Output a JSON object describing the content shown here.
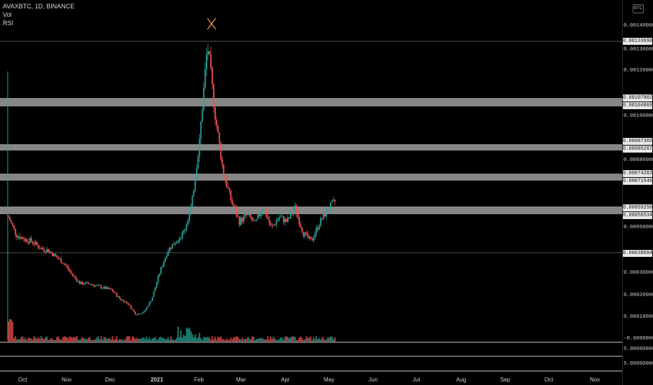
{
  "header": {
    "symbol_line": "AVAXBTC, 1D, BINANCE",
    "indicator_1": "Vol",
    "indicator_2": "RSI",
    "currency_badge": "BTC"
  },
  "colors": {
    "up": "#26a69a",
    "down": "#ef5350",
    "zone": "#9e9e9e",
    "marker": "#f5a05a"
  },
  "price_axis": {
    "ticks": [
      "0.00140000",
      "0.00130000",
      "0.00120000",
      "0.00100000",
      "0.00080000",
      "0.00050000",
      "0.00030000",
      "0.00020000",
      "0.00010000",
      "-0.00000000"
    ],
    "tags": [
      "0.00133690",
      "0.00107902",
      "0.00104869",
      "0.00087365",
      "0.00085287",
      "0.00074282",
      "0.00071546",
      "0.00059250",
      "0.00056534",
      "0.00038694"
    ],
    "panel_ticks": [
      "5.00000000",
      "5.00000000"
    ]
  },
  "time_axis": {
    "months": [
      "Oct",
      "Nov",
      "Dec",
      "2021",
      "Feb",
      "Mar",
      "Apr",
      "May",
      "Jun",
      "Jul",
      "Aug",
      "Sep",
      "Oct",
      "Nov"
    ]
  },
  "chart_data": {
    "type": "candlestick",
    "symbol": "AVAXBTC",
    "interval": "1D",
    "exchange": "BINANCE",
    "ylim": [
      0,
      0.0015
    ],
    "key_levels": [
      {
        "high": 0.00107902,
        "low": 0.00104869
      },
      {
        "high": 0.00087365,
        "low": 0.00085287
      },
      {
        "high": 0.00074282,
        "low": 0.00071546
      },
      {
        "high": 0.0005925,
        "low": 0.00056534
      }
    ],
    "horizontal_lines": [
      0.0013369,
      0.00038694
    ],
    "peak_price": 0.0013369,
    "price_path": [
      [
        0.00055,
        0.00047
      ],
      [
        0.00045,
        0.00044
      ],
      [
        0.00041,
        0.0004
      ],
      [
        0.00037,
        0.00034
      ],
      [
        0.00029,
        0.00025
      ],
      [
        0.00025,
        0.00024
      ],
      [
        0.00023,
        0.00022
      ],
      [
        0.00018,
        0.00016
      ],
      [
        0.00011,
        0.00012
      ],
      [
        0.00018,
        0.0003
      ],
      [
        0.0004,
        0.00044
      ],
      [
        0.00048,
        0.0006
      ],
      [
        0.0009,
        0.00133
      ],
      [
        0.001,
        0.00075
      ],
      [
        0.00062,
        0.00053
      ],
      [
        0.00056,
        0.00052
      ],
      [
        0.0006,
        0.0005
      ],
      [
        0.00055,
        0.00053
      ],
      [
        0.00059,
        0.00048
      ],
      [
        0.00044,
        0.00052
      ],
      [
        0.00058,
        0.00062
      ]
    ]
  }
}
